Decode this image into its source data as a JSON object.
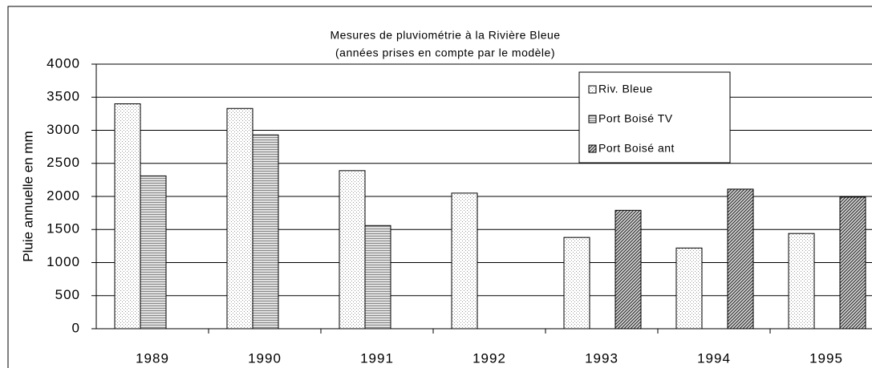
{
  "chart_data": {
    "type": "bar",
    "title": "Mesures de pluviométrie à la Rivière Bleue",
    "subtitle": "(années prises en compte par le modèle)",
    "y_label": "Pluie annuelle en mm",
    "categories": [
      "1989",
      "1990",
      "1991",
      "1992",
      "1993",
      "1994",
      "1995"
    ],
    "series": [
      {
        "name": "Riv. Bleue",
        "color": "#f2f2f2",
        "values": [
          3400,
          3330,
          2390,
          2050,
          1380,
          1220,
          1440
        ]
      },
      {
        "name": "Port Boisé TV",
        "color": "#c8c8c8",
        "values": [
          2310,
          2930,
          1560,
          null,
          null,
          null,
          null
        ]
      },
      {
        "name": "Port Boisé ant",
        "color": "#8c8c8c",
        "values": [
          null,
          null,
          null,
          null,
          1790,
          2110,
          1990
        ]
      }
    ],
    "ylim": [
      0,
      4000
    ],
    "yticks": [
      0,
      500,
      1000,
      1500,
      2000,
      2500,
      3000,
      3500,
      4000
    ],
    "grid": true,
    "legend": "top-right"
  }
}
